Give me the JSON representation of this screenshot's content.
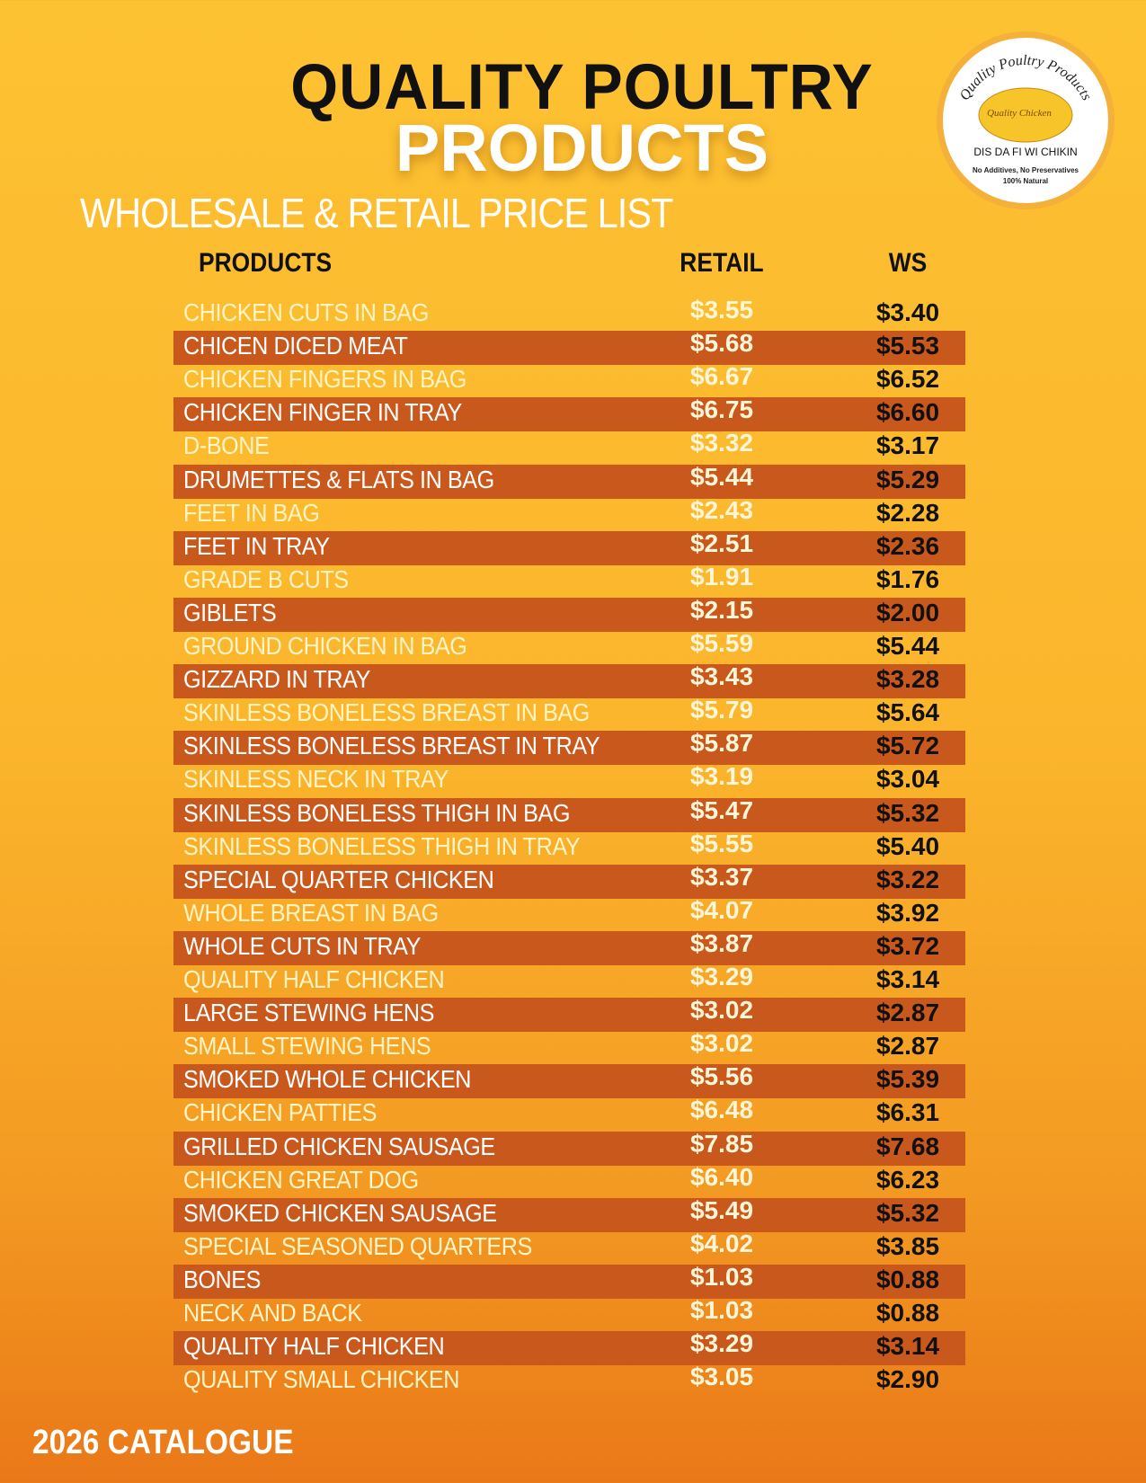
{
  "header": {
    "title_line1": "QUALITY POULTRY",
    "title_line2": "PRODUCTS",
    "subtitle": "WHOLESALE & RETAIL PRICE LIST"
  },
  "logo": {
    "arc_text": "Quality Poultry Products",
    "badge": "Quality Chicken",
    "tagline": "DIS DA FI WI CHIKIN",
    "note1": "No Additives, No Preservatives",
    "note2": "100% Natural"
  },
  "table": {
    "columns": [
      "PRODUCTS",
      "RETAIL",
      "WS"
    ],
    "rows": [
      [
        "CHICKEN CUTS IN BAG",
        "$3.55",
        "$3.40"
      ],
      [
        "CHICEN DICED MEAT",
        "$5.68",
        "$5.53"
      ],
      [
        "CHICKEN FINGERS IN BAG",
        "$6.67",
        "$6.52"
      ],
      [
        "CHICKEN FINGER IN TRAY",
        "$6.75",
        "$6.60"
      ],
      [
        "D-BONE",
        "$3.32",
        "$3.17"
      ],
      [
        "DRUMETTES & FLATS IN BAG",
        "$5.44",
        "$5.29"
      ],
      [
        "FEET IN BAG",
        "$2.43",
        "$2.28"
      ],
      [
        "FEET IN TRAY",
        "$2.51",
        "$2.36"
      ],
      [
        "GRADE B CUTS",
        "$1.91",
        "$1.76"
      ],
      [
        "GIBLETS",
        "$2.15",
        "$2.00"
      ],
      [
        "GROUND CHICKEN IN BAG",
        "$5.59",
        "$5.44"
      ],
      [
        "GIZZARD IN TRAY",
        "$3.43",
        "$3.28"
      ],
      [
        "SKINLESS BONELESS BREAST IN BAG",
        "$5.79",
        "$5.64"
      ],
      [
        "SKINLESS BONELESS BREAST IN TRAY",
        "$5.87",
        "$5.72"
      ],
      [
        "SKINLESS NECK IN TRAY",
        "$3.19",
        "$3.04"
      ],
      [
        "SKINLESS BONELESS THIGH IN BAG",
        "$5.47",
        "$5.32"
      ],
      [
        "SKINLESS BONELESS THIGH IN TRAY",
        "$5.55",
        "$5.40"
      ],
      [
        "SPECIAL QUARTER CHICKEN",
        "$3.37",
        "$3.22"
      ],
      [
        "WHOLE BREAST IN BAG",
        "$4.07",
        "$3.92"
      ],
      [
        "WHOLE CUTS IN TRAY",
        "$3.87",
        "$3.72"
      ],
      [
        "QUALITY HALF CHICKEN",
        "$3.29",
        "$3.14"
      ],
      [
        "LARGE STEWING HENS",
        "$3.02",
        "$2.87"
      ],
      [
        "SMALL STEWING HENS",
        "$3.02",
        "$2.87"
      ],
      [
        "SMOKED WHOLE CHICKEN",
        "$5.56",
        "$5.39"
      ],
      [
        "CHICKEN PATTIES",
        "$6.48",
        "$6.31"
      ],
      [
        "GRILLED CHICKEN SAUSAGE",
        "$7.85",
        "$7.68"
      ],
      [
        "CHICKEN GREAT DOG",
        "$6.40",
        "$6.23"
      ],
      [
        "SMOKED CHICKEN SAUSAGE",
        "$5.49",
        "$5.32"
      ],
      [
        "SPECIAL SEASONED QUARTERS",
        "$4.02",
        "$3.85"
      ],
      [
        "BONES",
        "$1.03",
        "$0.88"
      ],
      [
        "NECK AND BACK",
        "$1.03",
        "$0.88"
      ],
      [
        "QUALITY HALF CHICKEN",
        "$3.29",
        "$3.14"
      ],
      [
        "QUALITY SMALL CHICKEN",
        "$3.05",
        "$2.90"
      ]
    ]
  },
  "footer": {
    "catalogue": "2026 CATALOGUE"
  }
}
